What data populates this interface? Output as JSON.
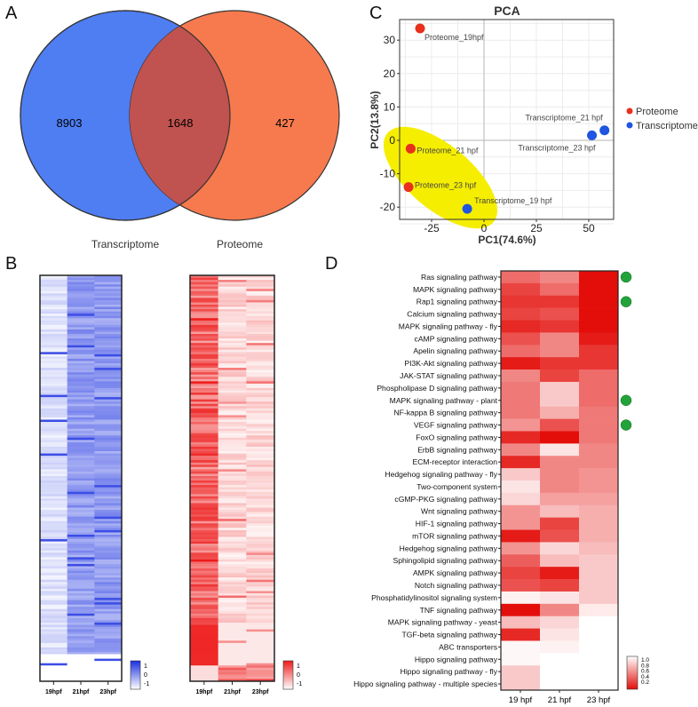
{
  "panels": {
    "a": "A",
    "b": "B",
    "c": "C",
    "d": "D"
  },
  "chart_data": [
    {
      "type": "venn",
      "sets": [
        {
          "name": "Transcriptome",
          "only": 8903,
          "color": "#4f7ef2"
        },
        {
          "name": "Proteome",
          "only": 427,
          "color": "#f67a4e"
        }
      ],
      "intersection": 1648,
      "intersection_color": "#c0524f"
    },
    {
      "type": "heatmap",
      "panels": [
        {
          "categories": [
            "19hpf",
            "21hpf",
            "23hpf"
          ],
          "color_low": "#ffffff",
          "color_high": "#1a2fe0",
          "legend_ticks": [
            "1",
            "0",
            "-1"
          ]
        },
        {
          "categories": [
            "19hpf",
            "21hpf",
            "23hpf"
          ],
          "color_low": "#ffffff",
          "color_high": "#ee1c1c",
          "legend_ticks": [
            "1",
            "0",
            "-1"
          ]
        }
      ]
    },
    {
      "type": "scatter",
      "title": "PCA",
      "xlabel": "PC1(74.6%)",
      "ylabel": "PC2(13.8%)",
      "xlim": [
        -41,
        62
      ],
      "ylim": [
        -23,
        37
      ],
      "xticks": [
        "-25",
        "0",
        "25",
        "50"
      ],
      "yticks": [
        "30",
        "20",
        "10",
        "0",
        "-10",
        "-20"
      ],
      "grid": true,
      "legend_position": "right",
      "series": [
        {
          "name": "Proteome",
          "color": "#e8301c",
          "points": [
            {
              "label": "Proteome_19hpf",
              "x": -30.5,
              "y": 33.5
            },
            {
              "label": "Proteome_21 hpf",
              "x": -35,
              "y": -2.5
            },
            {
              "label": "Proteome_23 hpf",
              "x": -36,
              "y": -14
            }
          ]
        },
        {
          "name": "Transcriptome",
          "color": "#1f55e0",
          "points": [
            {
              "label": "Transcriptome_21 hpf",
              "x": 57.5,
              "y": 3
            },
            {
              "label": "Transcriptome_23 hpf",
              "x": 51.5,
              "y": 1.5
            },
            {
              "label": "Transcriptome_19 hpf",
              "x": -8,
              "y": -20.5
            }
          ]
        }
      ],
      "highlight_color": "#f5ee00"
    },
    {
      "type": "heatmap",
      "columns": [
        "19 hpf",
        "21 hpf",
        "23 hpf"
      ],
      "legend_ticks": [
        "1.0",
        "0.8",
        "0.6",
        "0.4",
        "0.2"
      ],
      "marker_color": "#22a33a",
      "rows": [
        {
          "name": "Ras signaling pathway",
          "values": [
            0.45,
            0.55,
            0.1
          ],
          "marked": true
        },
        {
          "name": "MAPK signaling pathway",
          "values": [
            0.3,
            0.45,
            0.1
          ]
        },
        {
          "name": "Rap1 signaling pathway",
          "values": [
            0.25,
            0.25,
            0.1
          ],
          "marked": true
        },
        {
          "name": "Calcium signaling pathway",
          "values": [
            0.3,
            0.35,
            0.1
          ]
        },
        {
          "name": "MAPK signaling pathway - fly",
          "values": [
            0.2,
            0.25,
            0.1
          ]
        },
        {
          "name": "cAMP signaling pathway",
          "values": [
            0.35,
            0.55,
            0.15
          ]
        },
        {
          "name": "Apelin signaling pathway",
          "values": [
            0.45,
            0.55,
            0.25
          ]
        },
        {
          "name": "PI3K-Akt signaling pathway",
          "values": [
            0.15,
            0.25,
            0.25
          ]
        },
        {
          "name": "JAK-STAT signaling pathway",
          "values": [
            0.55,
            0.3,
            0.45
          ]
        },
        {
          "name": "Phospholipase D signaling pathway",
          "values": [
            0.5,
            0.8,
            0.45
          ]
        },
        {
          "name": "MAPK signaling pathway - plant",
          "values": [
            0.5,
            0.8,
            0.45
          ],
          "marked": true
        },
        {
          "name": "NF-kappa B signaling pathway",
          "values": [
            0.5,
            0.7,
            0.5
          ]
        },
        {
          "name": "VEGF signaling pathway",
          "values": [
            0.6,
            0.35,
            0.5
          ],
          "marked": true
        },
        {
          "name": "FoxO signaling pathway",
          "values": [
            0.2,
            0.1,
            0.5
          ]
        },
        {
          "name": "ErbB signaling pathway",
          "values": [
            0.55,
            0.9,
            0.55
          ]
        },
        {
          "name": "ECM-receptor interaction",
          "values": [
            0.2,
            0.55,
            0.55
          ]
        },
        {
          "name": "Hedgehog signaling pathway - fly",
          "values": [
            0.8,
            0.55,
            0.6
          ]
        },
        {
          "name": "Two-component system",
          "values": [
            0.9,
            0.55,
            0.6
          ]
        },
        {
          "name": "cGMP-PKG signaling pathway",
          "values": [
            0.85,
            0.65,
            0.65
          ]
        },
        {
          "name": "Wnt signaling pathway",
          "values": [
            0.6,
            0.75,
            0.7
          ]
        },
        {
          "name": "HIF-1 signaling pathway",
          "values": [
            0.6,
            0.3,
            0.7
          ]
        },
        {
          "name": "mTOR signaling pathway",
          "values": [
            0.15,
            0.35,
            0.7
          ]
        },
        {
          "name": "Hedgehog signaling pathway",
          "values": [
            0.6,
            0.85,
            0.75
          ]
        },
        {
          "name": "Sphingolipid signaling pathway",
          "values": [
            0.4,
            0.75,
            0.8
          ]
        },
        {
          "name": "AMPK signaling pathway",
          "values": [
            0.3,
            0.15,
            0.8
          ]
        },
        {
          "name": "Notch signaling pathway",
          "values": [
            0.35,
            0.3,
            0.8
          ]
        },
        {
          "name": "Phosphatidylinositol signaling system",
          "values": [
            0.95,
            0.9,
            0.8
          ]
        },
        {
          "name": "TNF signaling pathway",
          "values": [
            0.1,
            0.55,
            0.92
          ]
        },
        {
          "name": "MAPK signaling pathway - yeast",
          "values": [
            0.75,
            0.85,
            null
          ]
        },
        {
          "name": "TGF-beta signaling pathway",
          "values": [
            0.2,
            0.9,
            null
          ]
        },
        {
          "name": "ABC transporters",
          "values": [
            0.97,
            0.95,
            null
          ]
        },
        {
          "name": "Hippo signaling pathway",
          "values": [
            0.97,
            null,
            null
          ]
        },
        {
          "name": "Hippo signaling pathway - fly",
          "values": [
            0.8,
            null,
            null
          ]
        },
        {
          "name": "Hippo signaling pathway - multiple species",
          "values": [
            0.8,
            null,
            null
          ]
        }
      ]
    }
  ]
}
